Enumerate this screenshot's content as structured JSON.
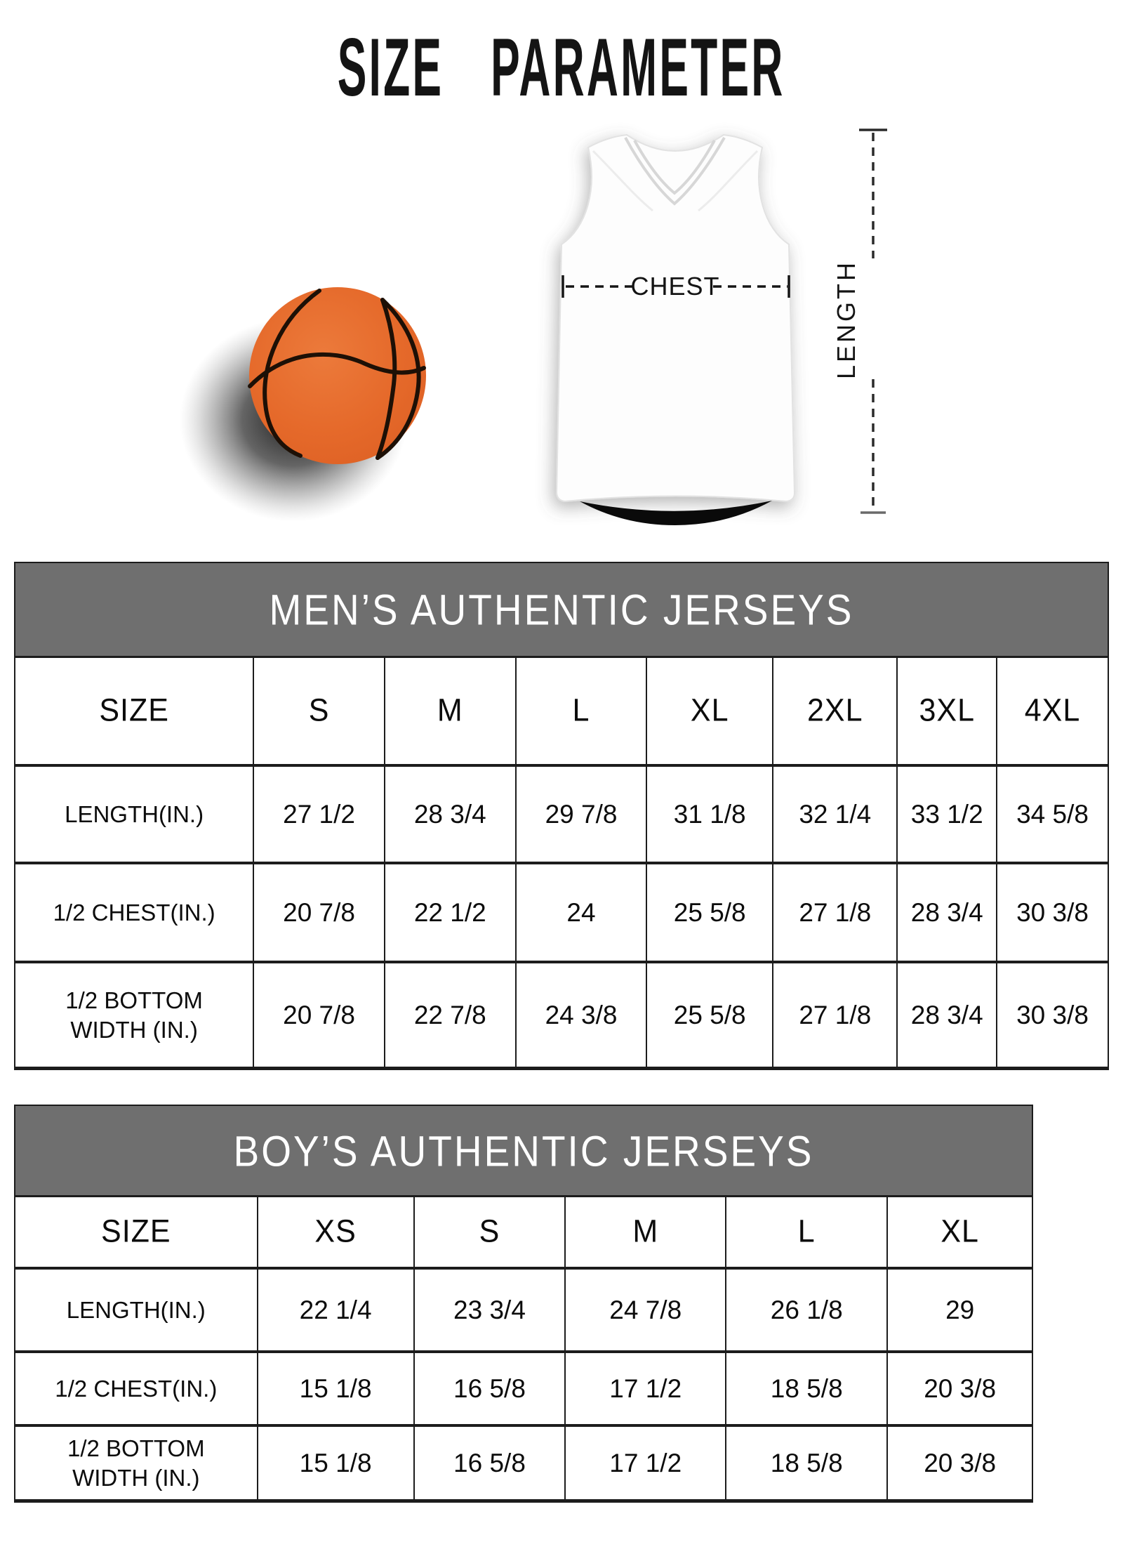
{
  "title": "SIZE PARAMETER",
  "diagram": {
    "chest_label": "CHEST",
    "length_label": "LENGTH"
  },
  "colors": {
    "banner_gray": "#6f6f6f",
    "ball_orange": "#e5692a",
    "seam_black": "#1d1006",
    "text_black": "#141414"
  },
  "tables": [
    {
      "title": "MEN’S AUTHENTIC JERSEYS",
      "columns": [
        "SIZE",
        "S",
        "M",
        "L",
        "XL",
        "2XL",
        "3XL",
        "4XL"
      ],
      "rows": [
        {
          "label": "LENGTH(IN.)",
          "values": [
            "27 1/2",
            "28 3/4",
            "29 7/8",
            "31 1/8",
            "32 1/4",
            "33 1/2",
            "34 5/8"
          ]
        },
        {
          "label": "1/2 CHEST(IN.)",
          "values": [
            "20 7/8",
            "22 1/2",
            "24",
            "25 5/8",
            "27 1/8",
            "28 3/4",
            "30 3/8"
          ]
        },
        {
          "label": "1/2 BOTTOM WIDTH (IN.)",
          "values": [
            "20 7/8",
            "22 7/8",
            "24 3/8",
            "25 5/8",
            "27 1/8",
            "28 3/4",
            "30 3/8"
          ]
        }
      ]
    },
    {
      "title": "BOY’S AUTHENTIC JERSEYS",
      "columns": [
        "SIZE",
        "XS",
        "S",
        "M",
        "L",
        "XL"
      ],
      "rows": [
        {
          "label": "LENGTH(IN.)",
          "values": [
            "22 1/4",
            "23 3/4",
            "24 7/8",
            "26 1/8",
            "29"
          ]
        },
        {
          "label": "1/2 CHEST(IN.)",
          "values": [
            "15 1/8",
            "16 5/8",
            "17 1/2",
            "18 5/8",
            "20 3/8"
          ]
        },
        {
          "label": "1/2 BOTTOM WIDTH (IN.)",
          "values": [
            "15 1/8",
            "16 5/8",
            "17 1/2",
            "18 5/8",
            "20 3/8"
          ]
        }
      ]
    }
  ]
}
